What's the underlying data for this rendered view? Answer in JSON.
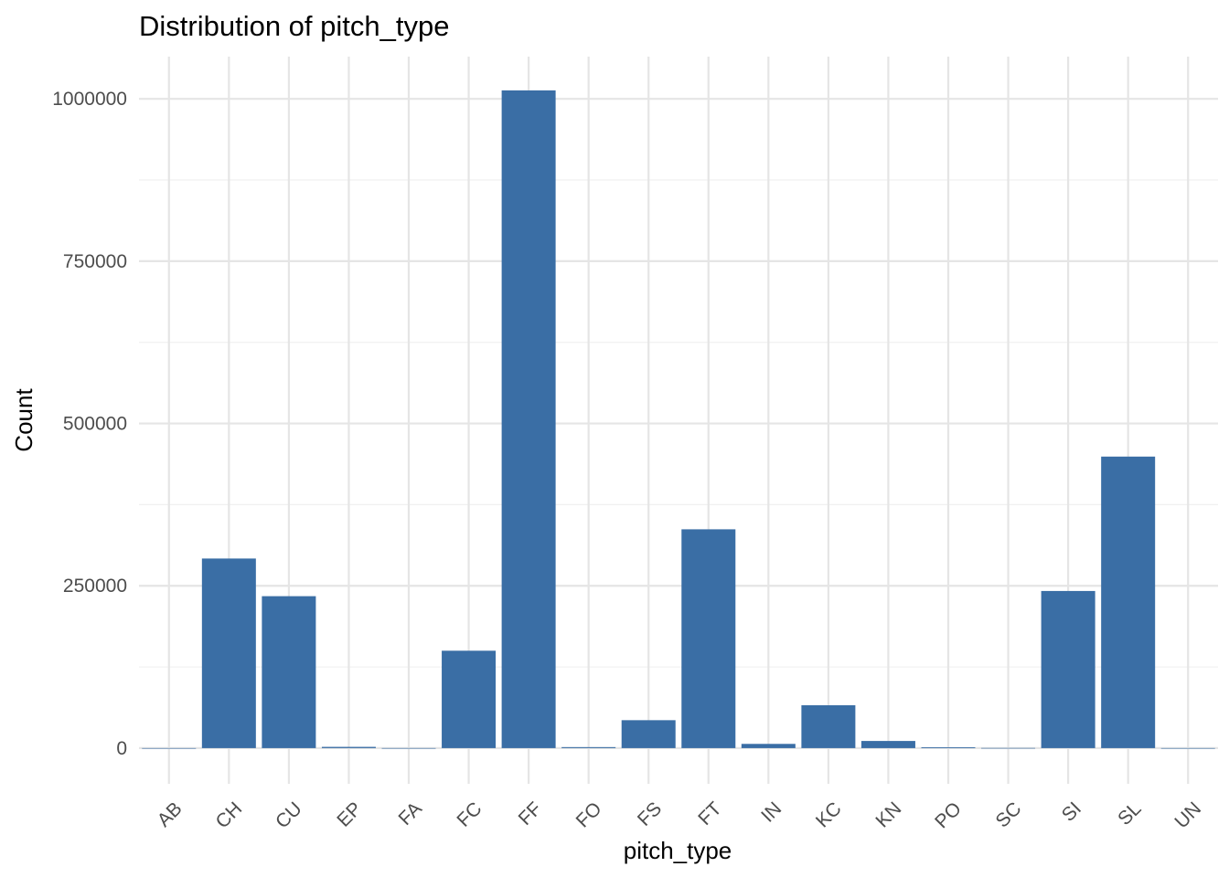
{
  "chart_data": {
    "type": "bar",
    "title": "Distribution of pitch_type",
    "xlabel": "pitch_type",
    "ylabel": "Count",
    "categories": [
      "AB",
      "CH",
      "CU",
      "EP",
      "FA",
      "FC",
      "FF",
      "FO",
      "FS",
      "FT",
      "IN",
      "KC",
      "KN",
      "PO",
      "SC",
      "SI",
      "SL",
      "UN"
    ],
    "values": [
      30,
      292000,
      234000,
      1900,
      60,
      150000,
      1013000,
      1500,
      43000,
      337000,
      6500,
      66000,
      11000,
      1300,
      200,
      242000,
      449000,
      40
    ],
    "y_ticks": [
      0,
      250000,
      500000,
      750000,
      1000000
    ],
    "y_tick_labels": [
      "0",
      "250000",
      "500000",
      "750000",
      "1000000"
    ],
    "ylim": [
      -55000,
      1065000
    ],
    "grid": true,
    "bar_color": "#3A6EA5"
  }
}
